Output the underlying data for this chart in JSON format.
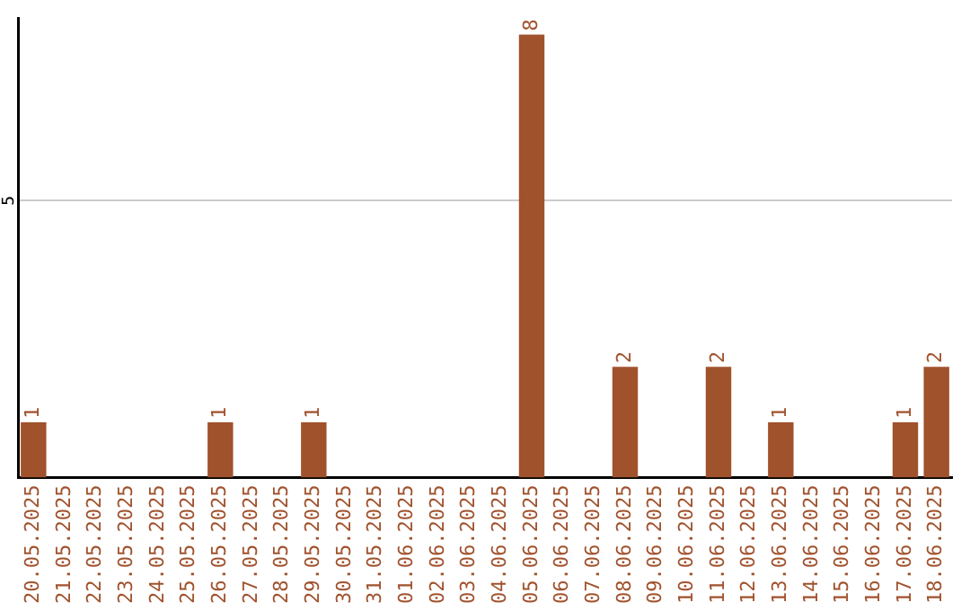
{
  "chart_data": {
    "type": "bar",
    "categories": [
      "20.05.2025",
      "21.05.2025",
      "22.05.2025",
      "23.05.2025",
      "24.05.2025",
      "25.05.2025",
      "26.05.2025",
      "27.05.2025",
      "28.05.2025",
      "29.05.2025",
      "30.05.2025",
      "31.05.2025",
      "01.06.2025",
      "02.06.2025",
      "03.06.2025",
      "04.06.2025",
      "05.06.2025",
      "06.06.2025",
      "07.06.2025",
      "08.06.2025",
      "09.06.2025",
      "10.06.2025",
      "11.06.2025",
      "12.06.2025",
      "13.06.2025",
      "14.06.2025",
      "15.06.2025",
      "16.06.2025",
      "17.06.2025",
      "18.06.2025"
    ],
    "values": [
      1,
      0,
      0,
      0,
      0,
      0,
      1,
      0,
      0,
      1,
      0,
      0,
      0,
      0,
      0,
      0,
      8,
      0,
      0,
      2,
      0,
      0,
      2,
      0,
      1,
      0,
      0,
      0,
      1,
      2
    ],
    "value_labels": [
      "1",
      null,
      null,
      null,
      null,
      null,
      "1",
      null,
      null,
      "1",
      null,
      null,
      null,
      null,
      null,
      null,
      "8",
      null,
      null,
      "2",
      null,
      null,
      "2",
      null,
      "1",
      null,
      null,
      null,
      "1",
      "2"
    ],
    "color": "#a0522d",
    "ylim": [
      0,
      8.3
    ],
    "yticks": [
      5
    ],
    "grid": "y",
    "legend": false
  }
}
